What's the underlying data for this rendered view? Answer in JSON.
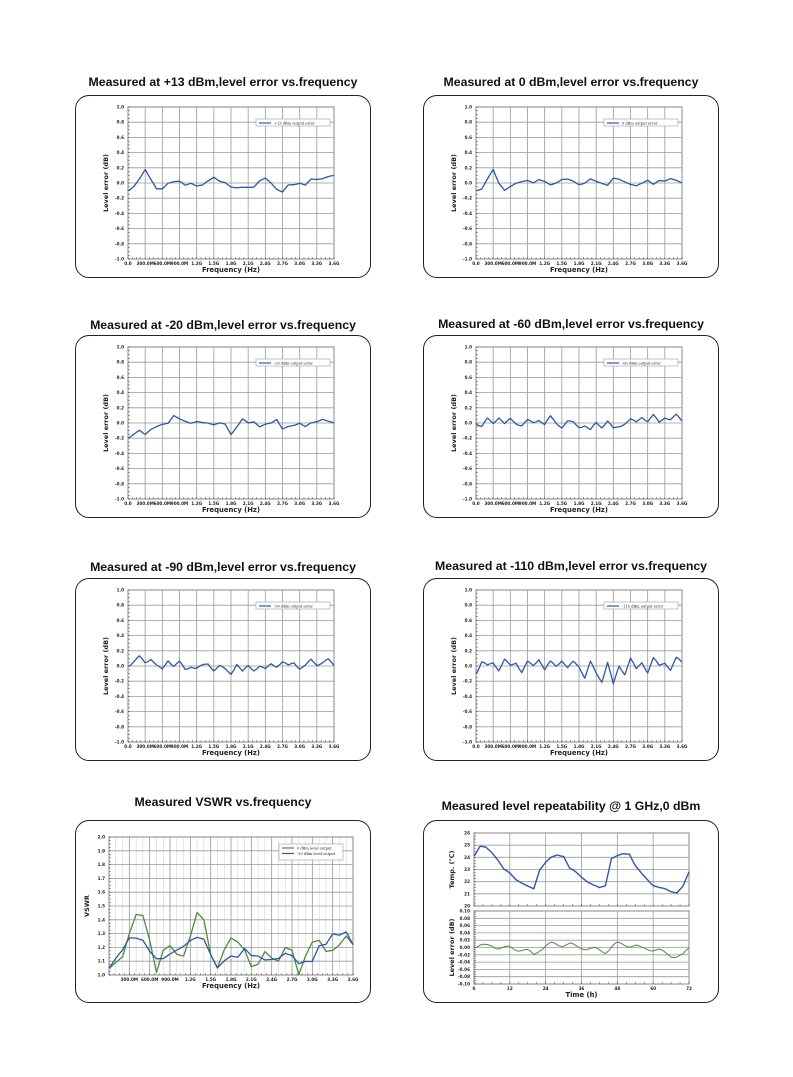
{
  "colors": {
    "blue": "#2c58a6",
    "green": "#4d8c3c",
    "grid": "#9a9a9a"
  },
  "charts": [
    {
      "title": "Measured at +13 dBm,level error vs.frequency",
      "type": "line",
      "xlabel": "Frequency (Hz)",
      "ylabel": "Level error (dB)",
      "xlim": [
        0,
        3.6
      ],
      "ylim": [
        -1,
        1
      ],
      "grid": true,
      "legend_position": "top-right",
      "xticks": [
        "0.0",
        "300.0M",
        "600.0M",
        "900.0M",
        "1.2G",
        "1.5G",
        "1.8G",
        "2.1G",
        "2.4G",
        "2.7G",
        "3.0G",
        "3.3G",
        "3.6G"
      ],
      "yticks": [
        "1.0",
        "0.8",
        "0.6",
        "0.4",
        "0.2",
        "0.0",
        "-0.2",
        "-0.4",
        "-0.6",
        "-0.8",
        "-1.0"
      ],
      "series": [
        {
          "name": "+13 dBm output error",
          "color": "#2c58a6",
          "values": [
            -0.1,
            -0.05,
            0.05,
            0.18,
            0.05,
            -0.08,
            -0.08,
            0.0,
            0.02,
            0.02,
            -0.03,
            0.0,
            -0.04,
            -0.03,
            0.03,
            0.08,
            0.02,
            0.0,
            -0.05,
            -0.06,
            -0.06,
            -0.06,
            -0.05,
            0.03,
            0.06,
            0.0,
            -0.08,
            -0.12,
            -0.03,
            -0.02,
            0.0,
            -0.03,
            0.05,
            0.05,
            0.06,
            0.08,
            0.1
          ]
        }
      ]
    },
    {
      "title": "Measured at 0 dBm,level error vs.frequency",
      "type": "line",
      "xlabel": "Frequency (Hz)",
      "ylabel": "Level error (dB)",
      "xlim": [
        0,
        3.6
      ],
      "ylim": [
        -1,
        1
      ],
      "grid": true,
      "legend_position": "top-right",
      "xticks": [
        "0.0",
        "300.0M",
        "600.0M",
        "900.0M",
        "1.2G",
        "1.5G",
        "1.8G",
        "2.1G",
        "2.4G",
        "2.7G",
        "3.0G",
        "3.3G",
        "3.6G"
      ],
      "yticks": [
        "1.0",
        "0.8",
        "0.6",
        "0.4",
        "0.2",
        "0.0",
        "-0.2",
        "-0.4",
        "-0.6",
        "-0.8",
        "-1.0"
      ],
      "series": [
        {
          "name": "0 dBm output error",
          "color": "#2c58a6",
          "values": [
            -0.1,
            -0.08,
            0.05,
            0.18,
            0.0,
            -0.1,
            -0.05,
            0.0,
            0.02,
            0.03,
            0.0,
            0.05,
            0.02,
            -0.03,
            0.0,
            0.05,
            0.05,
            0.02,
            -0.02,
            0.0,
            0.05,
            0.02,
            0.0,
            -0.03,
            0.06,
            0.05,
            0.02,
            -0.02,
            -0.04,
            0.0,
            0.04,
            -0.02,
            0.03,
            0.03,
            0.06,
            0.03,
            0.0
          ]
        }
      ]
    },
    {
      "title": "Measured at -20 dBm,level error vs.frequency",
      "type": "line",
      "xlabel": "Frequency (Hz)",
      "ylabel": "Level error (dB)",
      "xlim": [
        0,
        3.6
      ],
      "ylim": [
        -1,
        1
      ],
      "grid": true,
      "legend_position": "top-right",
      "xticks": [
        "0.0",
        "300.0M",
        "600.0M",
        "900.0M",
        "1.2G",
        "1.5G",
        "1.8G",
        "2.1G",
        "2.4G",
        "2.7G",
        "3.0G",
        "3.3G",
        "3.6G"
      ],
      "yticks": [
        "1.0",
        "0.8",
        "0.6",
        "0.4",
        "0.2",
        "0.0",
        "-0.2",
        "-0.4",
        "-0.6",
        "-0.8",
        "-1.0"
      ],
      "series": [
        {
          "name": "-20 dBm output error",
          "color": "#2c58a6",
          "values": [
            -0.2,
            -0.15,
            -0.1,
            -0.15,
            -0.08,
            -0.05,
            -0.02,
            0.0,
            0.1,
            0.05,
            0.02,
            0.0,
            0.02,
            0.0,
            0.0,
            -0.02,
            0.0,
            -0.02,
            -0.15,
            -0.05,
            0.05,
            0.0,
            0.02,
            -0.05,
            -0.02,
            0.0,
            0.05,
            -0.08,
            -0.05,
            -0.03,
            0.0,
            -0.05,
            0.0,
            0.02,
            0.05,
            0.02,
            0.0
          ]
        }
      ]
    },
    {
      "title": "Measured at -60 dBm,level error vs.frequency",
      "type": "line",
      "xlabel": "Frequency (Hz)",
      "ylabel": "Level error (dB)",
      "xlim": [
        0,
        3.6
      ],
      "ylim": [
        -1,
        1
      ],
      "grid": true,
      "legend_position": "top-right",
      "xticks": [
        "0.0",
        "300.0M",
        "600.0M",
        "900.0M",
        "1.2G",
        "1.5G",
        "1.8G",
        "2.1G",
        "2.4G",
        "2.7G",
        "3.0G",
        "3.3G",
        "3.6G"
      ],
      "yticks": [
        "1.0",
        "0.8",
        "0.6",
        "0.4",
        "0.2",
        "0.0",
        "-0.2",
        "-0.4",
        "-0.6",
        "-0.8",
        "-1.0"
      ],
      "series": [
        {
          "name": "-60 dBm output error",
          "color": "#2c58a6",
          "values": [
            0.0,
            -0.05,
            0.05,
            0.0,
            0.08,
            -0.02,
            0.05,
            0.0,
            -0.03,
            0.03,
            0.0,
            0.05,
            -0.02,
            0.08,
            0.0,
            -0.05,
            0.02,
            0.0,
            -0.05,
            -0.03,
            -0.1,
            0.0,
            -0.05,
            0.03,
            -0.08,
            -0.05,
            0.0,
            0.05,
            0.0,
            0.08,
            0.03,
            0.1,
            0.0,
            0.08,
            0.05,
            0.1,
            0.02
          ]
        }
      ]
    },
    {
      "title": "Measured at -90 dBm,level error vs.frequency",
      "type": "line",
      "xlabel": "Frequency (Hz)",
      "ylabel": "Level error (dB)",
      "xlim": [
        0,
        3.6
      ],
      "ylim": [
        -1,
        1
      ],
      "grid": true,
      "legend_position": "top-right",
      "xticks": [
        "0.0",
        "300.0M",
        "600.0M",
        "900.0M",
        "1.2G",
        "1.5G",
        "1.8G",
        "2.1G",
        "2.4G",
        "2.7G",
        "3.0G",
        "3.3G",
        "3.6G"
      ],
      "yticks": [
        "1.0",
        "0.8",
        "0.6",
        "0.4",
        "0.2",
        "0.0",
        "-0.2",
        "-0.4",
        "-0.6",
        "-0.8",
        "-1.0"
      ],
      "series": [
        {
          "name": "-90 dBm output error",
          "color": "#2c58a6",
          "values": [
            0.0,
            0.05,
            0.12,
            0.05,
            0.1,
            0.0,
            -0.05,
            0.08,
            0.0,
            0.05,
            -0.05,
            0.0,
            -0.03,
            0.0,
            0.03,
            -0.05,
            0.0,
            -0.05,
            -0.1,
            0.03,
            -0.08,
            0.0,
            -0.05,
            0.0,
            -0.05,
            0.03,
            0.0,
            0.05,
            0.0,
            0.05,
            -0.03,
            0.0,
            0.08,
            0.02,
            0.05,
            0.08,
            0.0
          ]
        }
      ]
    },
    {
      "title": "Measured at -110 dBm,level error vs.frequency",
      "type": "line",
      "xlabel": "Frequency (Hz)",
      "ylabel": "Level error (dB)",
      "xlim": [
        0,
        3.6
      ],
      "ylim": [
        -1,
        1
      ],
      "grid": true,
      "legend_position": "top-right",
      "xticks": [
        "0.0",
        "300.0M",
        "600.0M",
        "900.0M",
        "1.2G",
        "1.5G",
        "1.8G",
        "2.1G",
        "2.4G",
        "2.7G",
        "3.0G",
        "3.3G",
        "3.6G"
      ],
      "yticks": [
        "1.0",
        "0.8",
        "0.6",
        "0.4",
        "0.2",
        "0.0",
        "-0.2",
        "-0.4",
        "-0.6",
        "-0.8",
        "-1.0"
      ],
      "series": [
        {
          "name": "-110 dBm output error",
          "color": "#2c58a6",
          "values": [
            -0.1,
            0.05,
            0.0,
            0.05,
            -0.05,
            0.08,
            0.0,
            0.05,
            -0.08,
            0.05,
            0.0,
            0.1,
            -0.05,
            0.05,
            0.0,
            0.08,
            -0.03,
            0.05,
            0.0,
            -0.15,
            0.05,
            -0.1,
            -0.2,
            0.05,
            -0.25,
            0.0,
            -0.1,
            0.1,
            -0.05,
            0.05,
            -0.08,
            0.1,
            0.0,
            0.05,
            -0.05,
            0.1,
            0.05
          ]
        }
      ]
    },
    {
      "title": "Measured VSWR vs.frequency",
      "type": "line",
      "xlabel": "Frequency (Hz)",
      "ylabel": "VSWR",
      "xlim": [
        0,
        3.6
      ],
      "ylim": [
        1.0,
        2.0
      ],
      "grid": true,
      "legend_position": "top-right",
      "xticks": [
        "",
        "300.0M",
        "600.0M",
        "900.0M",
        "1.2G",
        "1.5G",
        "1.8G",
        "2.1G",
        "2.4G",
        "2.7G",
        "3.0G",
        "3.3G",
        "3.6G"
      ],
      "yticks": [
        "2.0",
        "1.9",
        "1.8",
        "1.7",
        "1.6",
        "1.5",
        "1.4",
        "1.3",
        "1.2",
        "1.1",
        "1.0"
      ],
      "series": [
        {
          "name": "0 dBm level output",
          "color": "#4d8c3c",
          "values": [
            1.05,
            1.09,
            1.13,
            1.3,
            1.44,
            1.43,
            1.25,
            1.02,
            1.18,
            1.21,
            1.15,
            1.14,
            1.28,
            1.45,
            1.4,
            1.15,
            1.05,
            1.18,
            1.27,
            1.24,
            1.18,
            1.06,
            1.08,
            1.17,
            1.12,
            1.1,
            1.2,
            1.18,
            1.0,
            1.14,
            1.24,
            1.25,
            1.17,
            1.18,
            1.22,
            1.28,
            1.22
          ]
        },
        {
          "name": "-10 dBm level output",
          "color": "#2c58a6",
          "values": [
            1.05,
            1.12,
            1.18,
            1.27,
            1.27,
            1.25,
            1.17,
            1.12,
            1.12,
            1.15,
            1.18,
            1.21,
            1.25,
            1.27,
            1.26,
            1.15,
            1.05,
            1.1,
            1.14,
            1.13,
            1.19,
            1.14,
            1.14,
            1.11,
            1.11,
            1.12,
            1.16,
            1.14,
            1.08,
            1.1,
            1.1,
            1.21,
            1.22,
            1.3,
            1.29,
            1.31,
            1.22
          ]
        }
      ]
    },
    {
      "title": "Measured level repeatability @ 1 GHz,0 dBm",
      "type": "line",
      "xlabel": "Time (h)",
      "xlim": [
        0,
        72
      ],
      "grid": true,
      "xticks": [
        "0",
        "12",
        "24",
        "36",
        "48",
        "60",
        "72"
      ],
      "panels": [
        {
          "ylabel": "Temp. (℃)",
          "ylim": [
            20,
            26
          ],
          "yticks": [
            "26",
            "25",
            "24",
            "23",
            "22",
            "21",
            "20"
          ],
          "color": "#2c58a6",
          "values": [
            24.1,
            24.9,
            24.8,
            24.4,
            23.8,
            23.0,
            22.7,
            22.2,
            21.9,
            21.6,
            21.4,
            23.0,
            23.6,
            24.0,
            24.2,
            24.1,
            23.1,
            22.8,
            22.4,
            22.0,
            21.7,
            21.5,
            21.7,
            23.9,
            24.1,
            24.3,
            24.3,
            23.3,
            22.7,
            22.2,
            21.7,
            21.5,
            21.4,
            21.2,
            21.1,
            21.6,
            22.8
          ]
        },
        {
          "ylabel": "Level error (dB)",
          "ylim": [
            -0.1,
            0.1
          ],
          "yticks": [
            "0.10",
            "0.08",
            "0.06",
            "0.04",
            "0.02",
            "0.00",
            "-0.02",
            "-0.04",
            "-0.06",
            "-0.08",
            "-0.10"
          ],
          "color": "#4d8c3c",
          "values": [
            0.003,
            0.005,
            0.004,
            0.006,
            0.0,
            -0.002,
            0.0,
            -0.004,
            -0.006,
            -0.01,
            -0.02,
            -0.005,
            0.004,
            0.01,
            0.008,
            0.008,
            0.01,
            0.002,
            0.0,
            -0.002,
            -0.004,
            -0.008,
            -0.012,
            0.002,
            0.01,
            0.008,
            0.006,
            0.005,
            -0.003,
            -0.003,
            -0.005,
            -0.008,
            -0.016,
            -0.022,
            -0.024,
            -0.022,
            -0.002
          ]
        }
      ]
    }
  ]
}
